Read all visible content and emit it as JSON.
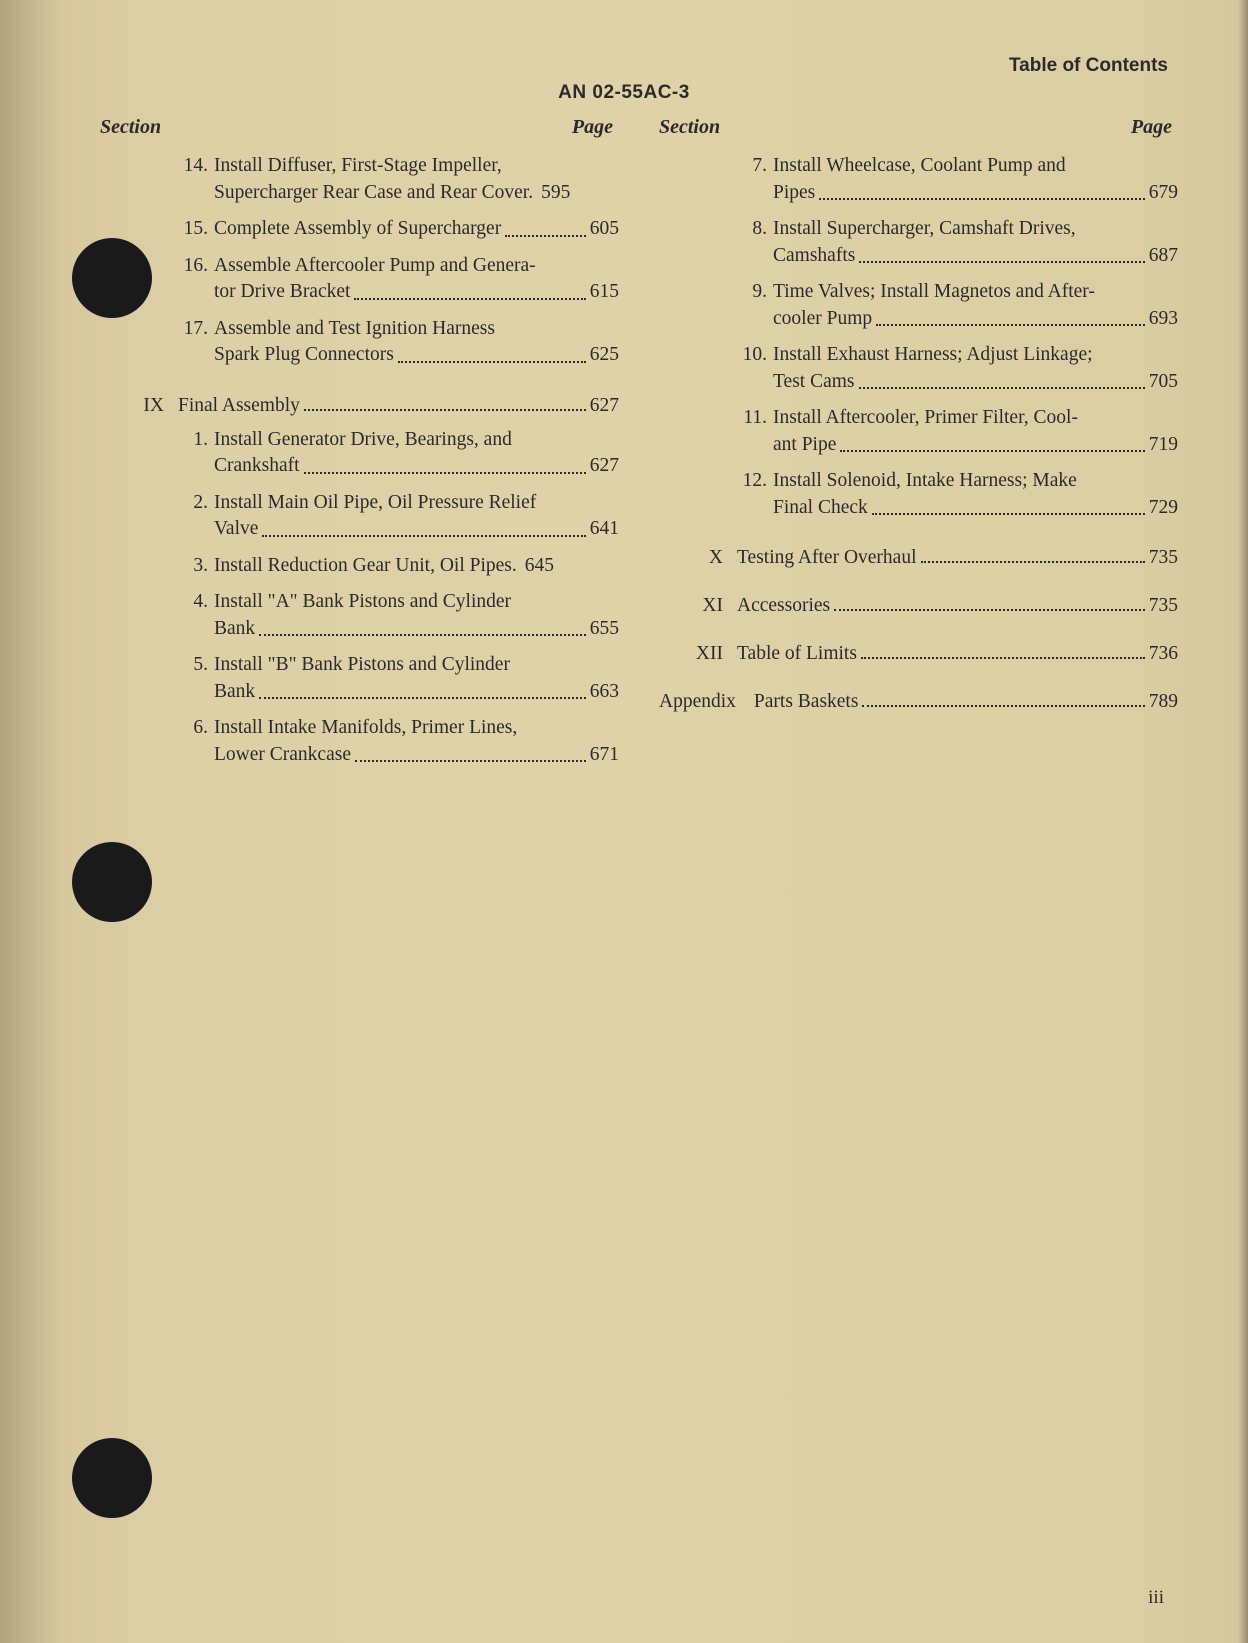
{
  "doc_number": "AN 02-55AC-3",
  "header_right": "Table of Contents",
  "col_heading_section": "Section",
  "col_heading_page": "Page",
  "page_footer": "iii",
  "left": {
    "continued_items": [
      {
        "n": "14.",
        "pre": "Install Diffuser, First-Stage Impeller,",
        "last": "Supercharger Rear Case and Rear Cover.",
        "page": "595",
        "tight": true
      },
      {
        "n": "15.",
        "pre": "",
        "last": "Complete Assembly of Supercharger",
        "page": "605",
        "tight": false
      },
      {
        "n": "16.",
        "pre": "Assemble Aftercooler Pump and Genera-",
        "last": "tor Drive Bracket",
        "page": "615",
        "tight": false
      },
      {
        "n": "17.",
        "pre": "Assemble and Test Ignition Harness",
        "last": "Spark Plug Connectors",
        "page": "625",
        "tight": false
      }
    ],
    "sections": [
      {
        "num": "IX",
        "title": "Final Assembly",
        "page": "627",
        "items": [
          {
            "n": "1.",
            "pre": "Install Generator Drive, Bearings, and",
            "last": "Crankshaft",
            "page": "627",
            "tight": false
          },
          {
            "n": "2.",
            "pre": "Install Main Oil Pipe, Oil Pressure Relief",
            "last": "Valve",
            "page": "641",
            "tight": false
          },
          {
            "n": "3.",
            "pre": "",
            "last": "Install Reduction Gear Unit, Oil Pipes.",
            "page": "645",
            "tight": true
          },
          {
            "n": "4.",
            "pre": "Install \"A\" Bank Pistons and Cylinder",
            "last": "Bank",
            "page": "655",
            "tight": false
          },
          {
            "n": "5.",
            "pre": "Install \"B\" Bank Pistons and Cylinder",
            "last": "Bank",
            "page": "663",
            "tight": false
          },
          {
            "n": "6.",
            "pre": "Install Intake Manifolds, Primer Lines,",
            "last": "Lower Crankcase",
            "page": "671",
            "tight": false
          }
        ]
      }
    ]
  },
  "right": {
    "continued_items": [
      {
        "n": "7.",
        "pre": "Install Wheelcase, Coolant Pump and",
        "last": "Pipes",
        "page": "679",
        "tight": false
      },
      {
        "n": "8.",
        "pre": "Install Supercharger, Camshaft Drives,",
        "last": "Camshafts",
        "page": "687",
        "tight": false
      },
      {
        "n": "9.",
        "pre": "Time Valves; Install Magnetos and After-",
        "last": "cooler Pump",
        "page": "693",
        "tight": false
      },
      {
        "n": "10.",
        "pre": "Install Exhaust Harness; Adjust Linkage;",
        "last": "Test Cams",
        "page": "705",
        "tight": false
      },
      {
        "n": "11.",
        "pre": "Install Aftercooler, Primer Filter, Cool-",
        "last": "ant Pipe",
        "page": "719",
        "tight": false
      },
      {
        "n": "12.",
        "pre": "Install Solenoid, Intake Harness; Make",
        "last": "Final Check",
        "page": "729",
        "tight": false
      }
    ],
    "sections": [
      {
        "num": "X",
        "title": "Testing After Overhaul",
        "page": "735",
        "items": []
      },
      {
        "num": "XI",
        "title": "Accessories",
        "page": "735",
        "items": []
      },
      {
        "num": "XII",
        "title": "Table of Limits",
        "page": "736",
        "items": []
      }
    ],
    "appendix": {
      "label": "Appendix",
      "title": "Parts Baskets",
      "page": "789"
    }
  }
}
